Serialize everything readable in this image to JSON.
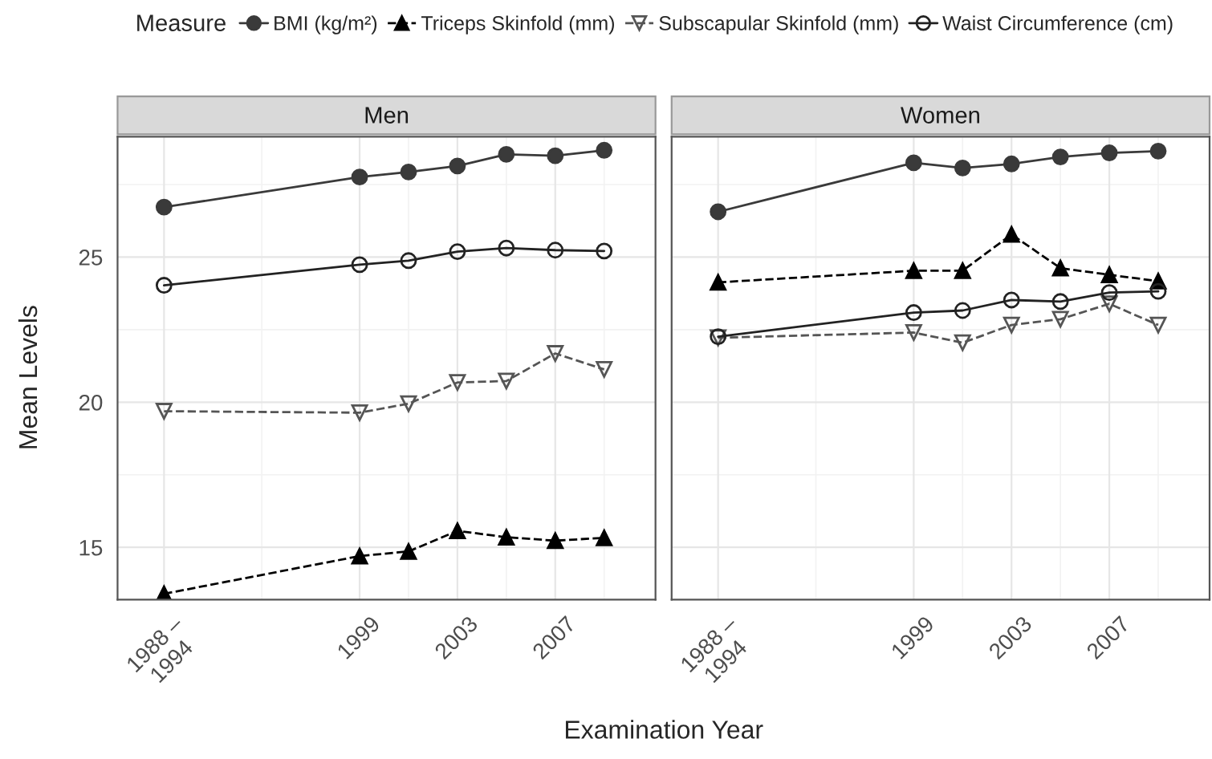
{
  "chart_data": [
    {
      "type": "line",
      "title": "Men",
      "xlabel": "Examination Year",
      "ylabel": "Mean Levels",
      "legend_title": "Measure",
      "legend": "top",
      "x": [
        1991,
        1999,
        2001,
        2003,
        2005,
        2007,
        2009
      ],
      "xlim": [
        1989.1,
        2011.1
      ],
      "xticks": [
        {
          "value": 1991,
          "label": "1988 –\n1994"
        },
        1999,
        2003,
        2007
      ],
      "ylim": [
        13.2,
        29.15
      ],
      "yticks": [
        15,
        20,
        25
      ],
      "grid": true,
      "series": [
        {
          "name": "BMI (kg/m²)",
          "color": "#3a3a3a",
          "marker": "circle",
          "line_style": "solid",
          "values": [
            26.72,
            27.76,
            27.93,
            28.14,
            28.54,
            28.49,
            28.68
          ]
        },
        {
          "name": "Triceps Skinfold (mm)",
          "color": "#000000",
          "marker": "triangle",
          "line_style": "dashed",
          "values": [
            13.4,
            14.7,
            14.86,
            15.57,
            15.35,
            15.23,
            15.33
          ]
        },
        {
          "name": "Subscapular Skinfold (mm)",
          "color": "#555555",
          "marker": "triangle_down_open",
          "line_style": "dashed",
          "values": [
            19.69,
            19.64,
            19.95,
            20.68,
            20.73,
            21.68,
            21.13
          ]
        },
        {
          "name": "Waist Circumference (cm)",
          "color": "#222222",
          "marker": "circle_open",
          "line_style": "solid",
          "values": [
            24.03,
            24.74,
            24.88,
            25.19,
            25.31,
            25.24,
            25.21
          ]
        }
      ]
    },
    {
      "type": "line",
      "title": "Women",
      "legend": false,
      "tick_labels": "x",
      "x": [
        1991,
        1999,
        2001,
        2003,
        2005,
        2007,
        2009
      ],
      "xlim": [
        1989.1,
        2011.1
      ],
      "xticks": [
        {
          "value": 1991,
          "label": "1988 –\n1994"
        },
        1999,
        2003,
        2007
      ],
      "ylim": [
        13.2,
        29.15
      ],
      "yticks": [
        15,
        20,
        25
      ],
      "grid": true,
      "series": [
        {
          "color": "#3a3a3a",
          "marker": "circle",
          "line_style": "solid",
          "values": [
            26.56,
            28.25,
            28.07,
            28.21,
            28.45,
            28.59,
            28.65
          ]
        },
        {
          "color": "#000000",
          "marker": "triangle",
          "line_style": "dashed",
          "values": [
            24.13,
            24.53,
            24.53,
            25.78,
            24.62,
            24.39,
            24.17
          ]
        },
        {
          "color": "#555555",
          "marker": "triangle_down_open",
          "line_style": "dashed",
          "values": [
            22.22,
            22.4,
            22.05,
            22.66,
            22.86,
            23.39,
            22.66
          ]
        },
        {
          "color": "#222222",
          "marker": "circle_open",
          "line_style": "solid",
          "values": [
            22.26,
            23.09,
            23.16,
            23.52,
            23.47,
            23.78,
            23.82
          ]
        }
      ]
    }
  ]
}
